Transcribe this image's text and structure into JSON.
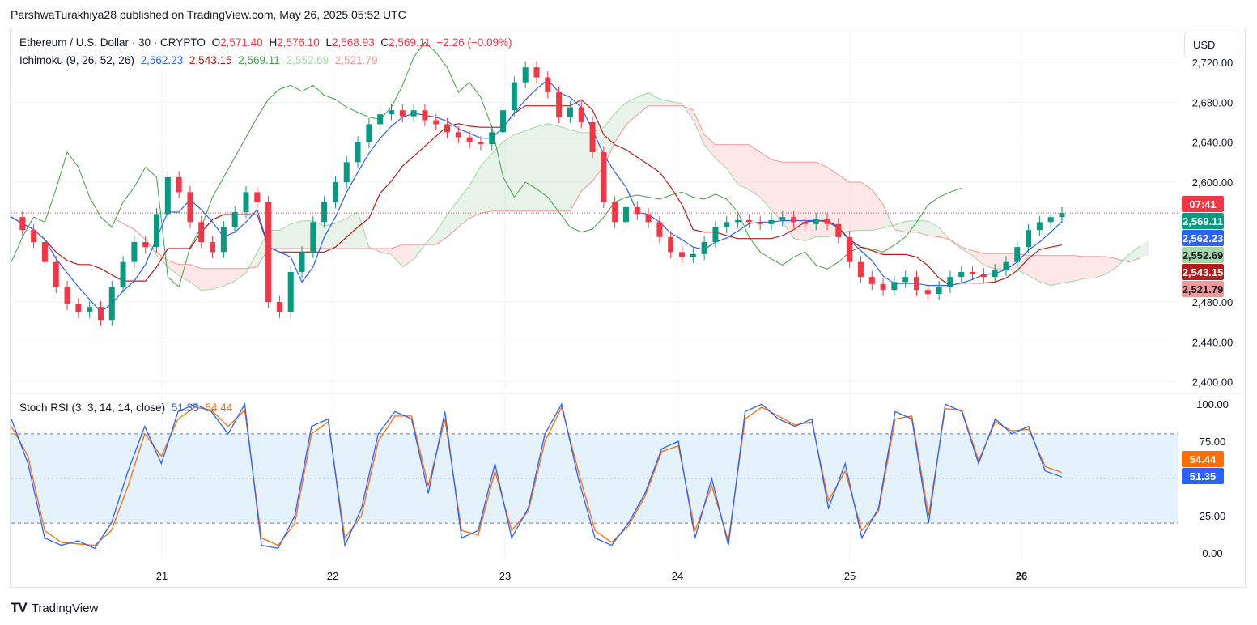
{
  "header": {
    "published": "ParshwaTurakhiya28 published on TradingView.com, May 26, 2025 05:52 UTC"
  },
  "legend": {
    "symbol": "Ethereum / U.S. Dollar · 30 · CRYPTO",
    "o_label": "O",
    "o": "2,571.40",
    "h_label": "H",
    "h": "2,576.10",
    "l_label": "L",
    "l": "2,568.93",
    "c_label": "C",
    "c": "2,569.11",
    "change": "−2.26 (−0.09%)",
    "ichimoku_label": "Ichimoku (9, 26, 52, 26)",
    "ich_conv": "2,562.23",
    "ich_base": "2,543.15",
    "ich_lag": "2,569.11",
    "ich_spanA": "2,552.69",
    "ich_spanB": "2,521.79",
    "stoch_label": "Stoch RSI (3, 3, 14, 14, close)",
    "stoch_k": "51.35",
    "stoch_d": "54.44"
  },
  "currency_button": "USD",
  "price_tags": {
    "countdown": "07:41",
    "close": "2,569.11",
    "conv": "2,562.23",
    "spanA": "2,552.69",
    "base": "2,543.15",
    "spanB": "2,521.79",
    "stoch_d": "54.44",
    "stoch_k": "51.35"
  },
  "colors": {
    "up": "#089981",
    "down": "#f23645",
    "conv": "#2962ff",
    "base": "#b71c1c",
    "lag": "#43a047",
    "spanA": "#a5d6a7",
    "spanB": "#ef9a9a",
    "stoch_k": "#2962ff",
    "stoch_d": "#ff6d00",
    "band": "#e3f2fd"
  },
  "chart_data": {
    "type": "candlestick",
    "price_axis": {
      "ylim": [
        2390,
        2750
      ],
      "ticks": [
        "2,720.00",
        "2,680.00",
        "2,640.00",
        "2,600.00",
        "2,480.00",
        "2,440.00",
        "2,400.00"
      ]
    },
    "time_axis": {
      "ticks": [
        "21",
        "22",
        "23",
        "24",
        "25",
        "26"
      ]
    },
    "last_price": 2569.11,
    "close_series": [
      2565,
      2552,
      2540,
      2520,
      2495,
      2478,
      2470,
      2475,
      2462,
      2495,
      2520,
      2540,
      2535,
      2568,
      2605,
      2590,
      2560,
      2540,
      2530,
      2555,
      2570,
      2590,
      2580,
      2480,
      2470,
      2510,
      2530,
      2560,
      2580,
      2600,
      2620,
      2640,
      2658,
      2668,
      2672,
      2666,
      2672,
      2662,
      2658,
      2650,
      2645,
      2640,
      2638,
      2650,
      2672,
      2700,
      2715,
      2705,
      2690,
      2665,
      2675,
      2660,
      2630,
      2580,
      2560,
      2575,
      2568,
      2560,
      2545,
      2530,
      2525,
      2528,
      2540,
      2555,
      2560,
      2562,
      2560,
      2558,
      2562,
      2565,
      2560,
      2558,
      2563,
      2558,
      2545,
      2520,
      2505,
      2498,
      2492,
      2500,
      2505,
      2492,
      2488,
      2495,
      2505,
      2510,
      2508,
      2505,
      2512,
      2520,
      2535,
      2552,
      2560,
      2565,
      2569
    ],
    "stoch_rsi": {
      "ylim": [
        -5,
        105
      ],
      "ticks": [
        "100.00",
        "75.00",
        "25.00",
        "0.00"
      ],
      "bands": [
        20,
        80
      ],
      "k": [
        90,
        60,
        10,
        5,
        8,
        3,
        20,
        55,
        85,
        60,
        95,
        100,
        95,
        80,
        100,
        5,
        3,
        25,
        85,
        90,
        5,
        30,
        80,
        95,
        90,
        40,
        95,
        10,
        15,
        60,
        10,
        30,
        80,
        100,
        50,
        10,
        5,
        20,
        40,
        70,
        75,
        10,
        50,
        5,
        95,
        100,
        90,
        85,
        90,
        30,
        60,
        10,
        30,
        95,
        90,
        20,
        100,
        95,
        60,
        90,
        80,
        85,
        55,
        51
      ],
      "d": [
        85,
        65,
        15,
        7,
        6,
        5,
        15,
        45,
        80,
        65,
        90,
        98,
        96,
        85,
        96,
        10,
        5,
        20,
        80,
        88,
        10,
        25,
        75,
        92,
        92,
        45,
        90,
        15,
        12,
        55,
        15,
        28,
        75,
        98,
        55,
        15,
        7,
        18,
        38,
        68,
        72,
        15,
        45,
        8,
        90,
        98,
        92,
        86,
        88,
        35,
        55,
        15,
        28,
        90,
        92,
        25,
        97,
        96,
        62,
        88,
        82,
        83,
        58,
        54
      ]
    }
  }
}
